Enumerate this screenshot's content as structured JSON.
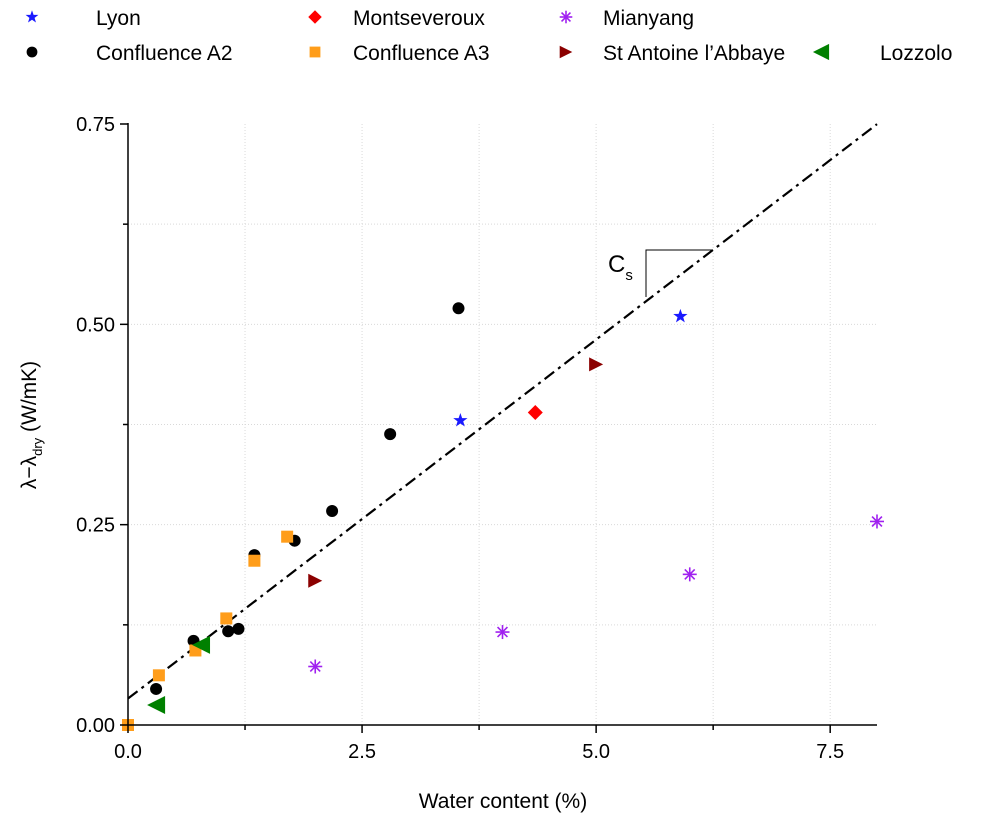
{
  "chart_data": {
    "type": "scatter",
    "xlabel": "Water content (%)",
    "ylabel": {
      "prefix": "λ−λ",
      "subscript": "dry",
      "suffix": " (W/mK)"
    },
    "xlim": [
      0,
      8
    ],
    "ylim": [
      0,
      0.75
    ],
    "x_ticks": [
      {
        "value": 0,
        "label": "0.0"
      },
      {
        "value": 2.5,
        "label": "2.5"
      },
      {
        "value": 5,
        "label": "5.0"
      },
      {
        "value": 7.5,
        "label": "7.5"
      }
    ],
    "y_ticks": [
      {
        "value": 0,
        "label": "0.00"
      },
      {
        "value": 0.25,
        "label": "0.25"
      },
      {
        "value": 0.5,
        "label": "0.50"
      },
      {
        "value": 0.75,
        "label": "0.75"
      }
    ],
    "grid": true,
    "legend_position": "top",
    "series": [
      {
        "name": "Lyon",
        "marker": "star",
        "color": "#1a1aff",
        "points": [
          [
            3.55,
            0.38
          ],
          [
            5.9,
            0.51
          ]
        ]
      },
      {
        "name": "Confluence A2",
        "marker": "circle",
        "color": "#000000",
        "points": [
          [
            0.3,
            0.045
          ],
          [
            0.7,
            0.105
          ],
          [
            1.07,
            0.117
          ],
          [
            1.18,
            0.12
          ],
          [
            1.35,
            0.212
          ],
          [
            1.78,
            0.23
          ],
          [
            2.18,
            0.267
          ],
          [
            2.8,
            0.363
          ],
          [
            3.53,
            0.52
          ]
        ]
      },
      {
        "name": "Montseveroux",
        "marker": "diamond",
        "color": "#ff0000",
        "points": [
          [
            4.35,
            0.39
          ]
        ]
      },
      {
        "name": "Confluence A3",
        "marker": "square",
        "color": "#ff9d1a",
        "points": [
          [
            0.0,
            0.0
          ],
          [
            0.33,
            0.062
          ],
          [
            0.72,
            0.093
          ],
          [
            1.05,
            0.133
          ],
          [
            1.35,
            0.205
          ],
          [
            1.7,
            0.235
          ]
        ]
      },
      {
        "name": "Mianyang",
        "marker": "asterisk",
        "color": "#a020f0",
        "points": [
          [
            2.0,
            0.073
          ],
          [
            4.0,
            0.116
          ],
          [
            6.0,
            0.188
          ],
          [
            8.0,
            0.254
          ]
        ]
      },
      {
        "name": "St Antoine l’Abbaye",
        "marker": "triangle-right",
        "color": "#8b0000",
        "points": [
          [
            2.0,
            0.18
          ],
          [
            5.0,
            0.45
          ]
        ]
      },
      {
        "name": "Lozzolo",
        "marker": "triangle-left",
        "color": "#008000",
        "points": [
          [
            0.3,
            0.025
          ],
          [
            0.78,
            0.1
          ]
        ]
      }
    ],
    "fit_line": {
      "style": "dash-dot",
      "color": "#000000",
      "intercept": 0.033,
      "slope": 0.0896
    },
    "annotation": {
      "main": "C",
      "subscript": "s"
    }
  }
}
